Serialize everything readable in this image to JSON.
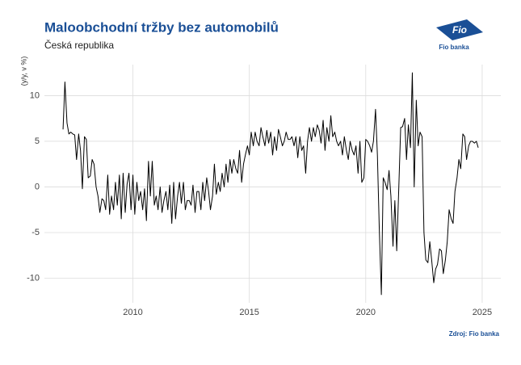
{
  "chart_data": {
    "type": "line",
    "title": "Maloobchodní tržby bez automobilů",
    "subtitle": "Česká republika",
    "y_label": "(y/y, v %)",
    "source": "Zdroj: Fio banka",
    "logo_text": "Fio",
    "logo_caption": "Fio banka",
    "xlim": [
      2006.2,
      2025.8
    ],
    "xticks": [
      2010,
      2015,
      2020,
      2025
    ],
    "ylim": [
      -12.7,
      13.4
    ],
    "yticks": [
      -10,
      -5,
      0,
      5,
      10
    ],
    "grid": true,
    "x": [
      2007.0,
      2007.08,
      2007.17,
      2007.25,
      2007.33,
      2007.42,
      2007.5,
      2007.58,
      2007.67,
      2007.75,
      2007.83,
      2007.92,
      2008.0,
      2008.08,
      2008.17,
      2008.25,
      2008.33,
      2008.42,
      2008.5,
      2008.58,
      2008.67,
      2008.75,
      2008.83,
      2008.92,
      2009.0,
      2009.08,
      2009.17,
      2009.25,
      2009.33,
      2009.42,
      2009.5,
      2009.58,
      2009.67,
      2009.75,
      2009.83,
      2009.92,
      2010.0,
      2010.08,
      2010.17,
      2010.25,
      2010.33,
      2010.42,
      2010.5,
      2010.58,
      2010.67,
      2010.75,
      2010.83,
      2010.92,
      2011.0,
      2011.08,
      2011.17,
      2011.25,
      2011.33,
      2011.42,
      2011.5,
      2011.58,
      2011.67,
      2011.75,
      2011.83,
      2011.92,
      2012.0,
      2012.08,
      2012.17,
      2012.25,
      2012.33,
      2012.42,
      2012.5,
      2012.58,
      2012.67,
      2012.75,
      2012.83,
      2012.92,
      2013.0,
      2013.08,
      2013.17,
      2013.25,
      2013.33,
      2013.42,
      2013.5,
      2013.58,
      2013.67,
      2013.75,
      2013.83,
      2013.92,
      2014.0,
      2014.08,
      2014.17,
      2014.25,
      2014.33,
      2014.42,
      2014.5,
      2014.58,
      2014.67,
      2014.75,
      2014.83,
      2014.92,
      2015.0,
      2015.08,
      2015.17,
      2015.25,
      2015.33,
      2015.42,
      2015.5,
      2015.58,
      2015.67,
      2015.75,
      2015.83,
      2015.92,
      2016.0,
      2016.08,
      2016.17,
      2016.25,
      2016.33,
      2016.42,
      2016.5,
      2016.58,
      2016.67,
      2016.75,
      2016.83,
      2016.92,
      2017.0,
      2017.08,
      2017.17,
      2017.25,
      2017.33,
      2017.42,
      2017.5,
      2017.58,
      2017.67,
      2017.75,
      2017.83,
      2017.92,
      2018.0,
      2018.08,
      2018.17,
      2018.25,
      2018.33,
      2018.42,
      2018.5,
      2018.58,
      2018.67,
      2018.75,
      2018.83,
      2018.92,
      2019.0,
      2019.08,
      2019.17,
      2019.25,
      2019.33,
      2019.42,
      2019.5,
      2019.58,
      2019.67,
      2019.75,
      2019.83,
      2019.92,
      2020.0,
      2020.08,
      2020.17,
      2020.25,
      2020.33,
      2020.42,
      2020.5,
      2020.58,
      2020.67,
      2020.75,
      2020.83,
      2020.92,
      2021.0,
      2021.08,
      2021.17,
      2021.25,
      2021.33,
      2021.42,
      2021.5,
      2021.58,
      2021.67,
      2021.75,
      2021.83,
      2021.92,
      2022.0,
      2022.08,
      2022.17,
      2022.25,
      2022.33,
      2022.42,
      2022.5,
      2022.58,
      2022.67,
      2022.75,
      2022.83,
      2022.92,
      2023.0,
      2023.08,
      2023.17,
      2023.25,
      2023.33,
      2023.42,
      2023.5,
      2023.58,
      2023.67,
      2023.75,
      2023.83,
      2023.92,
      2024.0,
      2024.08,
      2024.17,
      2024.25,
      2024.33,
      2024.42,
      2024.5,
      2024.58,
      2024.67,
      2024.75,
      2024.83
    ],
    "series": [
      {
        "color": "#000000",
        "values": [
          6.3,
          11.5,
          7,
          5.8,
          6,
          5.8,
          5.7,
          3,
          5.8,
          4,
          -0.2,
          5.5,
          5.2,
          1,
          1.2,
          3,
          2.5,
          0,
          -1,
          -2.8,
          -1.3,
          -1.5,
          -2.5,
          1.3,
          -3,
          -1,
          -2.5,
          0.5,
          -2,
          1.3,
          -3.5,
          1.5,
          -2.8,
          0.3,
          1.5,
          -2.5,
          1.3,
          -3,
          0.5,
          -1.5,
          -0.5,
          -2.5,
          -0.2,
          -3.7,
          2.8,
          -1,
          2.8,
          -2,
          -1,
          -2.5,
          0,
          -2.8,
          -1.5,
          -0.5,
          -2.5,
          0.2,
          -4,
          0.5,
          -3.5,
          -1,
          0.5,
          -1.8,
          0.5,
          -2.5,
          -1.5,
          -1.5,
          -2,
          0.2,
          -2.8,
          -0.5,
          -0.5,
          -2.5,
          0.5,
          -1.5,
          1,
          -0.5,
          -2.5,
          -1,
          2.5,
          -0.8,
          0.5,
          -0.5,
          1.5,
          0,
          2.5,
          0.5,
          3,
          1.5,
          3,
          2,
          1.5,
          4,
          0.5,
          2.5,
          3.5,
          4.5,
          3.5,
          6,
          4.5,
          6,
          5,
          4.5,
          6.5,
          5.5,
          4.5,
          6.2,
          4.8,
          6,
          3.5,
          5.5,
          4,
          6.3,
          5.5,
          4.5,
          5,
          6,
          5.2,
          5.2,
          5.5,
          4.5,
          5.5,
          3.2,
          5.5,
          4,
          4.5,
          1.5,
          5,
          6.5,
          5,
          6.5,
          5.5,
          6.8,
          6.2,
          4.8,
          7.3,
          4,
          6.5,
          5,
          7.8,
          5.5,
          6,
          5,
          4.5,
          5,
          3.5,
          5.5,
          4,
          3,
          5,
          4,
          3.5,
          4.5,
          1.5,
          5,
          0.5,
          1,
          5.2,
          5,
          4.5,
          3.8,
          5,
          8.5,
          3.5,
          -4.5,
          -11.8,
          1,
          0.5,
          -0.3,
          1.8,
          -1,
          -6.5,
          -1.5,
          -7,
          0,
          6.5,
          6.6,
          7.5,
          3,
          6.8,
          4.3,
          12.5,
          0,
          9.5,
          4.5,
          6,
          5.5,
          -5,
          -8,
          -8.3,
          -6,
          -8,
          -10.5,
          -9,
          -8.5,
          -6.8,
          -7,
          -9.5,
          -8,
          -6,
          -2.5,
          -3.5,
          -4,
          -0.5,
          1,
          3,
          2,
          5.8,
          5.5,
          3,
          4.5,
          5,
          5,
          4.8,
          5,
          4.3
        ]
      }
    ]
  }
}
